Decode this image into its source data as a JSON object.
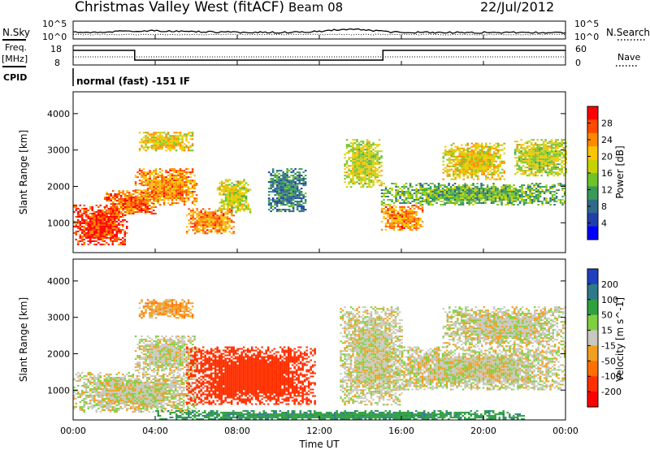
{
  "header": {
    "title": "Christmas Valley West (fitACF)",
    "beam": "Beam 08",
    "date": "22/Jul/2012"
  },
  "nsky_panel": {
    "left_label": "N.Sky",
    "right_label": "N.Search",
    "ticks": [
      "10^5",
      "10^0"
    ],
    "right_ticks": [
      "10^5",
      "10^0"
    ]
  },
  "freq_panel": {
    "left_label_line1": "Freq.",
    "left_label_line2": "[MHz]",
    "left_ticks": [
      "18",
      "8"
    ],
    "right_label": "Nave",
    "right_ticks": [
      "60",
      "0"
    ]
  },
  "cpid_panel": {
    "label": "CPID",
    "text": "normal (fast) -151 IF"
  },
  "power_panel": {
    "ylabel": "Slant Range [km]",
    "colorbar_label": "Power [dB]",
    "colorbar_ticks": [
      "28",
      "24",
      "20",
      "16",
      "12",
      "8",
      "4"
    ],
    "colors": [
      "#ff0000",
      "#ff4a00",
      "#ff8a00",
      "#ffc400",
      "#c8d200",
      "#6fc32a",
      "#3a9a5a",
      "#2e6a8a",
      "#1f3faa",
      "#0000ff"
    ]
  },
  "velocity_panel": {
    "ylabel": "Slant Range [km]",
    "colorbar_label": "Velocity [m s^-1]",
    "colorbar_ticks": [
      "200",
      "100",
      "50",
      "15",
      "-15",
      "-50",
      "-100",
      "-200"
    ],
    "colors": [
      "#2040c0",
      "#2f7a8a",
      "#2fa040",
      "#7fd040",
      "#c8c8c0",
      "#f0a020",
      "#ff7000",
      "#ff3000",
      "#ff0000"
    ]
  },
  "chart_data": {
    "type": "heatmap",
    "xlabel": "Time UT",
    "x_ticks": [
      "00:00",
      "04:00",
      "08:00",
      "12:00",
      "16:00",
      "20:00",
      "00:00"
    ],
    "xlim_hours": [
      0,
      24
    ],
    "y_ticks": [
      "1000",
      "2000",
      "3000",
      "4000"
    ],
    "ylim_km": [
      180,
      4600
    ],
    "frequency_steps": [
      {
        "start_hours": 0.0,
        "end_hours": 3.0,
        "freq_mhz": 16
      },
      {
        "start_hours": 3.0,
        "end_hours": 15.1,
        "freq_mhz": 10
      },
      {
        "start_hours": 15.1,
        "end_hours": 24.0,
        "freq_mhz": 16
      }
    ],
    "power_regions": [
      {
        "t0": 0.0,
        "t1": 2.6,
        "r0": 400,
        "r1": 1500,
        "power_db": 28
      },
      {
        "t0": 1.5,
        "t1": 4.0,
        "r0": 1200,
        "r1": 1900,
        "power_db": 26
      },
      {
        "t0": 3.0,
        "t1": 6.0,
        "r0": 1500,
        "r1": 2500,
        "power_db": 24
      },
      {
        "t0": 3.2,
        "t1": 5.8,
        "r0": 3000,
        "r1": 3500,
        "power_db": 20
      },
      {
        "t0": 5.5,
        "t1": 7.8,
        "r0": 700,
        "r1": 1400,
        "power_db": 24
      },
      {
        "t0": 7.0,
        "t1": 8.6,
        "r0": 1300,
        "r1": 2200,
        "power_db": 18
      },
      {
        "t0": 9.5,
        "t1": 11.3,
        "r0": 1300,
        "r1": 2500,
        "power_db": 10
      },
      {
        "t0": 13.2,
        "t1": 15.0,
        "r0": 2000,
        "r1": 3300,
        "power_db": 18
      },
      {
        "t0": 15.0,
        "t1": 17.0,
        "r0": 800,
        "r1": 1500,
        "power_db": 24
      },
      {
        "t0": 15.0,
        "t1": 24.0,
        "r0": 1500,
        "r1": 2100,
        "power_db": 14
      },
      {
        "t0": 18.0,
        "t1": 21.0,
        "r0": 2200,
        "r1": 3200,
        "power_db": 20
      },
      {
        "t0": 21.5,
        "t1": 24.0,
        "r0": 2300,
        "r1": 3300,
        "power_db": 18
      }
    ],
    "velocity_regions": [
      {
        "t0": 0.0,
        "t1": 6.0,
        "r0": 400,
        "r1": 1500,
        "velocity_ms": 0
      },
      {
        "t0": 3.0,
        "t1": 6.0,
        "r0": 1500,
        "r1": 2500,
        "velocity_ms": 0
      },
      {
        "t0": 3.2,
        "t1": 5.8,
        "r0": 3000,
        "r1": 3500,
        "velocity_ms": -40
      },
      {
        "t0": 5.5,
        "t1": 11.8,
        "r0": 600,
        "r1": 2200,
        "velocity_ms": -150
      },
      {
        "t0": 13.0,
        "t1": 16.0,
        "r0": 600,
        "r1": 3300,
        "velocity_ms": 0
      },
      {
        "t0": 15.0,
        "t1": 24.0,
        "r0": 1000,
        "r1": 2200,
        "velocity_ms": 0
      },
      {
        "t0": 18.0,
        "t1": 24.0,
        "r0": 2200,
        "r1": 3300,
        "velocity_ms": 0
      },
      {
        "t0": 4.0,
        "t1": 22.0,
        "r0": 200,
        "r1": 450,
        "velocity_ms": 60
      }
    ]
  }
}
